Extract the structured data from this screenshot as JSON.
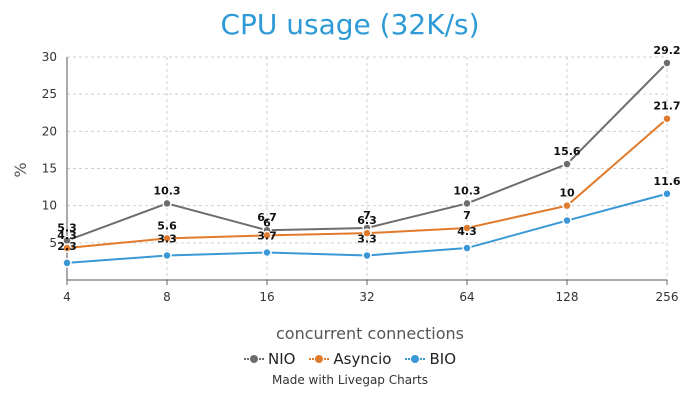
{
  "chart_data": {
    "type": "line",
    "title": "CPU usage (32K/s)",
    "xlabel": "concurrent connections",
    "ylabel": "%",
    "categories": [
      "4",
      "8",
      "16",
      "32",
      "64",
      "128",
      "256"
    ],
    "yticks": [
      "5",
      "10",
      "15",
      "20",
      "25",
      "30"
    ],
    "ylim": [
      0,
      30
    ],
    "grid": "dashed",
    "legend_position": "bottom",
    "series": [
      {
        "name": "NIO",
        "color": "#6d6d6d",
        "values": [
          5.3,
          10.3,
          6.7,
          7,
          10.3,
          15.6,
          29.2
        ],
        "labels": [
          "5.3",
          "10.3",
          "6.7",
          "7",
          "10.3",
          "15.6",
          "29.2"
        ]
      },
      {
        "name": "Asyncio",
        "color": "#e07a2c",
        "values": [
          4.3,
          5.6,
          6,
          6.3,
          7,
          10,
          21.7
        ],
        "labels": [
          "4.3",
          "5.6",
          "6",
          "6.3",
          "7",
          "10",
          "21.7"
        ]
      },
      {
        "name": "BIO",
        "color": "#3a98d6",
        "values": [
          2.3,
          3.3,
          3.7,
          3.3,
          4.3,
          8,
          11.6
        ],
        "labels": [
          "2.3",
          "3.3",
          "3.7",
          "3.3",
          "4.3",
          "",
          "11.6"
        ]
      }
    ]
  },
  "credit": "Made with Livegap Charts"
}
